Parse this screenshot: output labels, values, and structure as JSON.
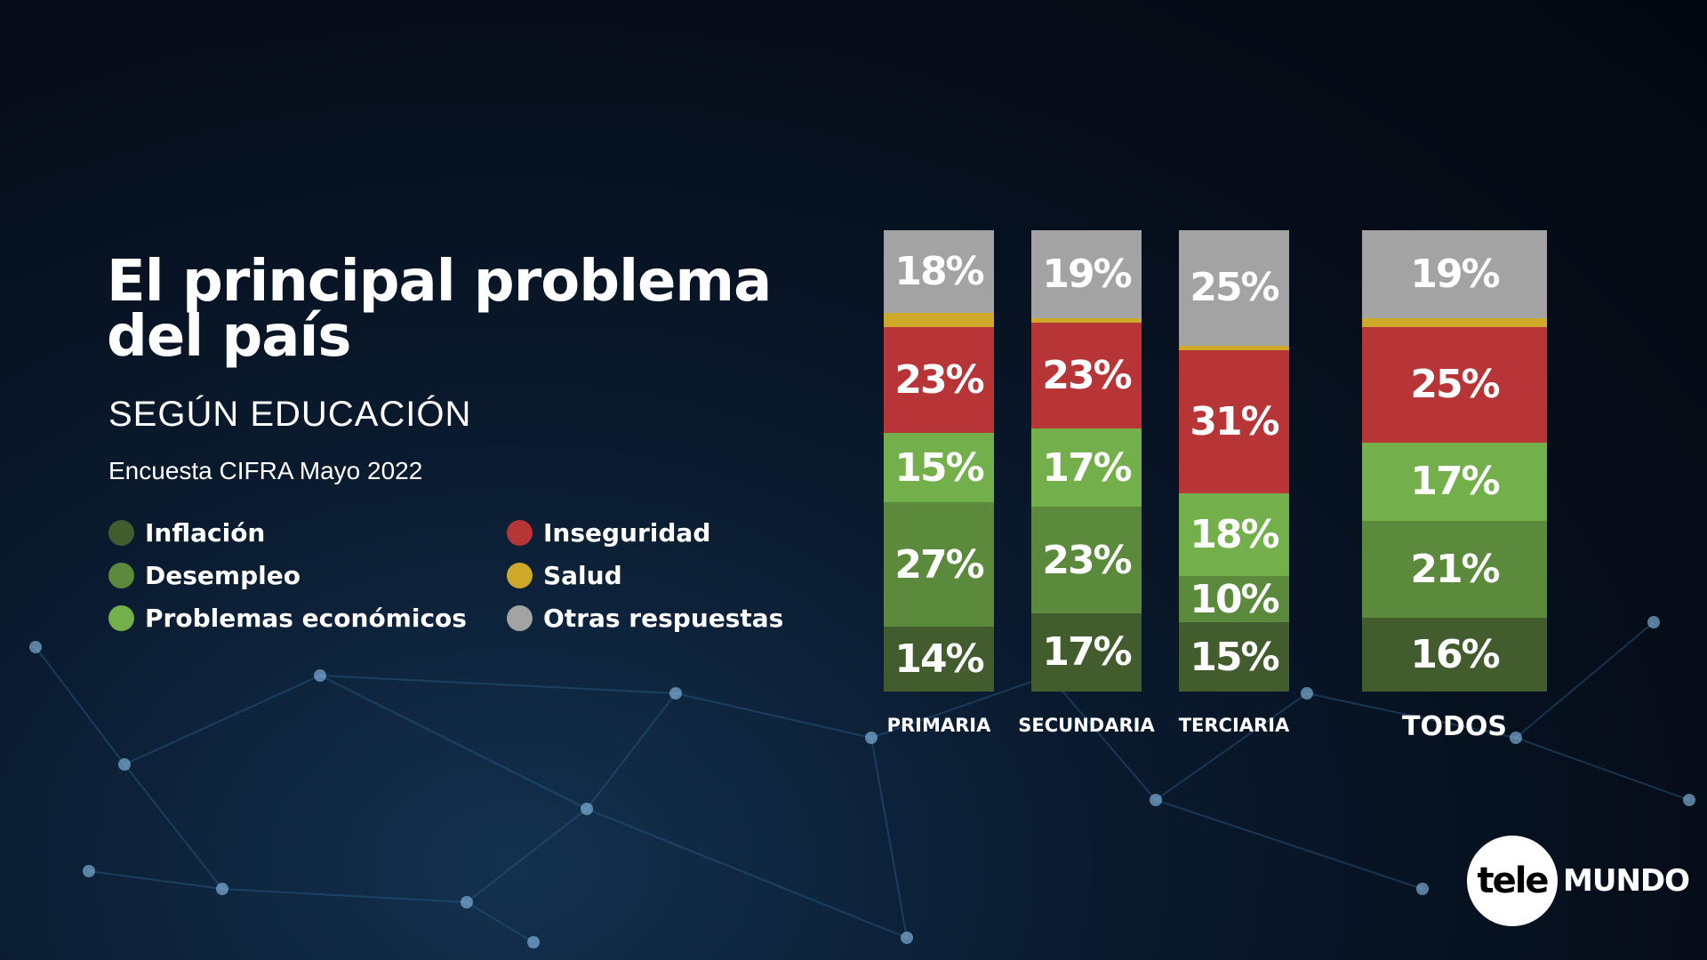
{
  "title": "El principal problema del país",
  "subtitle": "SEGÚN EDUCACIÓN",
  "source": "Encuesta CIFRA Mayo 2022",
  "logo": {
    "left": "tele",
    "right": "MUNDO"
  },
  "chart_data": {
    "type": "bar",
    "stacked": true,
    "title": "El principal problema del país",
    "subtitle": "SEGÚN EDUCACIÓN",
    "categories": [
      "PRIMARIA",
      "SECUNDARIA",
      "TERCIARIA",
      "TODOS"
    ],
    "legend_position": "left",
    "series": [
      {
        "name": "Inflación",
        "color": "#435c2e",
        "values": [
          14,
          17,
          15,
          16
        ],
        "labels": [
          "14%",
          "17%",
          "15%",
          "16%"
        ]
      },
      {
        "name": "Desempleo",
        "color": "#5b8a3d",
        "values": [
          27,
          23,
          10,
          21
        ],
        "labels": [
          "27%",
          "23%",
          "10%",
          "21%"
        ]
      },
      {
        "name": "Problemas económicos",
        "color": "#73b04b",
        "values": [
          15,
          17,
          18,
          17
        ],
        "labels": [
          "15%",
          "17%",
          "18%",
          "17%"
        ]
      },
      {
        "name": "Inseguridad",
        "color": "#b83537",
        "values": [
          23,
          23,
          31,
          25
        ],
        "labels": [
          "23%",
          "23%",
          "31%",
          "25%"
        ]
      },
      {
        "name": "Salud",
        "color": "#cfaa2a",
        "values": [
          3,
          1,
          1,
          2
        ],
        "labels": [
          "",
          "",
          "",
          ""
        ]
      },
      {
        "name": "Otras respuestas",
        "color": "#a3a3a3",
        "values": [
          18,
          19,
          25,
          19
        ],
        "labels": [
          "18%",
          "19%",
          "25%",
          "19%"
        ]
      }
    ]
  }
}
